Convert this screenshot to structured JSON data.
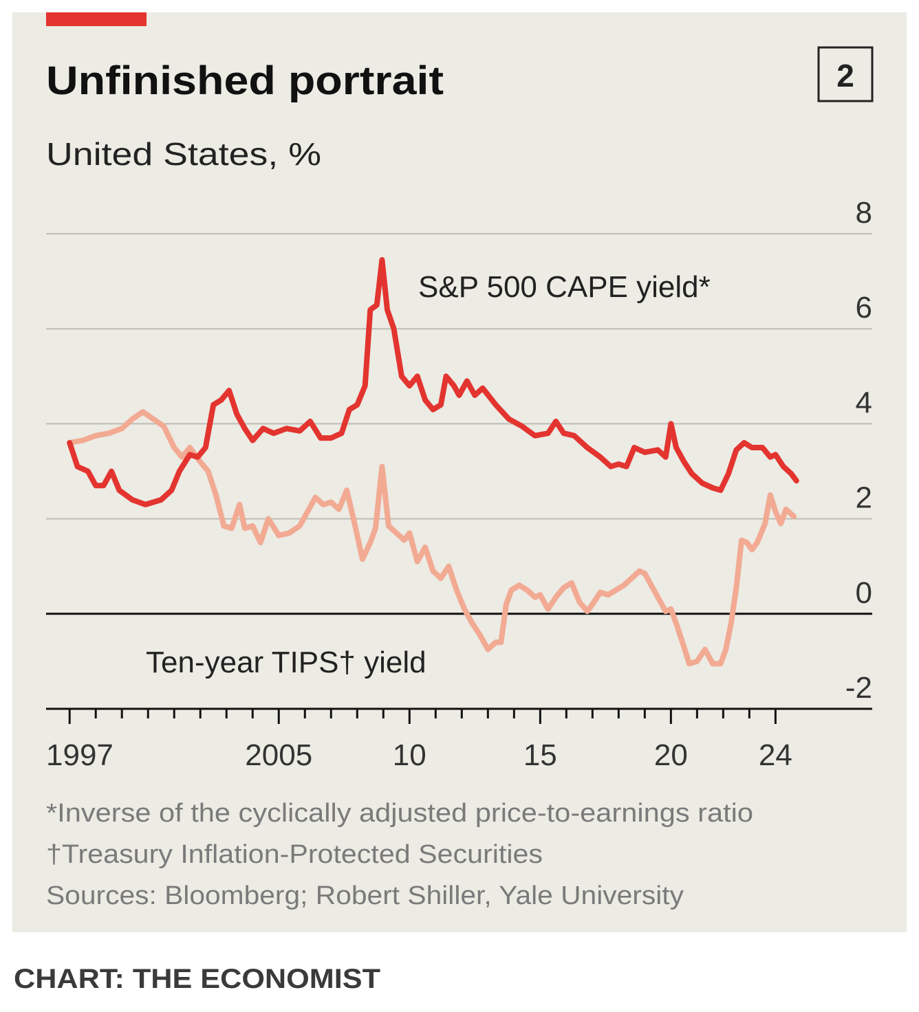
{
  "chart_data": {
    "type": "line",
    "title": "Unfinished portrait",
    "subtitle": "United States, %",
    "badge": "2",
    "footnotes": [
      "*Inverse of the cyclically adjusted price-to-earnings ratio",
      "†Treasury Inflation-Protected Securities",
      "Sources: Bloomberg; Robert Shiller, Yale University"
    ],
    "credit": "CHART: THE ECONOMIST",
    "xlim": [
      1996.1,
      2027.7
    ],
    "xticks": [
      {
        "value": 1997,
        "label": "1997"
      },
      {
        "value": 2005,
        "label": "2005"
      },
      {
        "value": 2010,
        "label": "10"
      },
      {
        "value": 2015,
        "label": "15"
      },
      {
        "value": 2020,
        "label": "20"
      },
      {
        "value": 2024,
        "label": "24"
      }
    ],
    "xminorticks": [
      1998,
      1999,
      2000,
      2001,
      2002,
      2003,
      2004,
      2006,
      2007,
      2008,
      2009,
      2011,
      2012,
      2013,
      2014,
      2016,
      2017,
      2018,
      2019,
      2021,
      2022,
      2023
    ],
    "ylim": [
      -2,
      8
    ],
    "yticks": [
      -2,
      0,
      2,
      4,
      6,
      8
    ],
    "grid": true,
    "series": [
      {
        "name": "S&P 500 CAPE yield*",
        "color": "#e3342f",
        "x": [
          1997.0,
          1997.3,
          1997.7,
          1998.0,
          1998.3,
          1998.6,
          1998.9,
          1999.4,
          1999.9,
          2000.5,
          2000.9,
          2001.2,
          2001.6,
          2001.9,
          2002.2,
          2002.5,
          2002.8,
          2003.1,
          2003.4,
          2003.7,
          2004.0,
          2004.4,
          2004.8,
          2005.3,
          2005.8,
          2006.2,
          2006.6,
          2007.0,
          2007.4,
          2007.7,
          2008.0,
          2008.3,
          2008.5,
          2008.75,
          2008.95,
          2009.15,
          2009.4,
          2009.7,
          2010.0,
          2010.3,
          2010.6,
          2010.9,
          2011.2,
          2011.4,
          2011.7,
          2011.9,
          2012.2,
          2012.5,
          2012.8,
          2013.3,
          2013.8,
          2014.3,
          2014.8,
          2015.3,
          2015.6,
          2015.9,
          2016.3,
          2016.8,
          2017.3,
          2017.7,
          2018.0,
          2018.3,
          2018.6,
          2019.0,
          2019.5,
          2019.8,
          2020.0,
          2020.2,
          2020.5,
          2020.8,
          2021.2,
          2021.6,
          2021.9,
          2022.2,
          2022.5,
          2022.8,
          2023.1,
          2023.5,
          2023.8,
          2024.0,
          2024.3,
          2024.6,
          2024.8
        ],
        "values": [
          3.6,
          3.1,
          3.0,
          2.7,
          2.7,
          3.0,
          2.6,
          2.4,
          2.3,
          2.4,
          2.6,
          3.0,
          3.35,
          3.3,
          3.5,
          4.4,
          4.5,
          4.7,
          4.2,
          3.9,
          3.65,
          3.9,
          3.8,
          3.9,
          3.85,
          4.05,
          3.7,
          3.7,
          3.8,
          4.3,
          4.4,
          4.8,
          6.4,
          6.5,
          7.45,
          6.4,
          6.0,
          5.0,
          4.8,
          5.0,
          4.5,
          4.3,
          4.4,
          5.0,
          4.8,
          4.6,
          4.9,
          4.6,
          4.75,
          4.4,
          4.1,
          3.95,
          3.75,
          3.8,
          4.05,
          3.8,
          3.75,
          3.5,
          3.3,
          3.1,
          3.15,
          3.1,
          3.5,
          3.4,
          3.45,
          3.3,
          4.0,
          3.5,
          3.2,
          2.95,
          2.75,
          2.65,
          2.6,
          2.95,
          3.45,
          3.6,
          3.5,
          3.5,
          3.3,
          3.35,
          3.1,
          2.95,
          2.8
        ]
      },
      {
        "name": "Ten-year TIPS† yield",
        "color": "#f2aa93",
        "x": [
          1997.0,
          1997.5,
          1998.0,
          1998.5,
          1999.0,
          1999.4,
          1999.8,
          2000.2,
          2000.6,
          2001.0,
          2001.3,
          2001.6,
          2002.0,
          2002.3,
          2002.6,
          2002.9,
          2003.2,
          2003.5,
          2003.7,
          2004.0,
          2004.3,
          2004.6,
          2005.0,
          2005.4,
          2005.8,
          2006.1,
          2006.4,
          2006.7,
          2007.0,
          2007.3,
          2007.6,
          2007.9,
          2008.2,
          2008.5,
          2008.7,
          2008.95,
          2009.2,
          2009.5,
          2009.8,
          2010.0,
          2010.3,
          2010.6,
          2010.9,
          2011.2,
          2011.5,
          2011.8,
          2012.1,
          2012.4,
          2012.7,
          2013.0,
          2013.3,
          2013.5,
          2013.7,
          2013.9,
          2014.2,
          2014.5,
          2014.8,
          2015.0,
          2015.3,
          2015.6,
          2015.9,
          2016.2,
          2016.5,
          2016.8,
          2017.0,
          2017.3,
          2017.6,
          2017.9,
          2018.2,
          2018.5,
          2018.8,
          2019.0,
          2019.3,
          2019.6,
          2019.8,
          2020.0,
          2020.2,
          2020.5,
          2020.7,
          2021.0,
          2021.3,
          2021.6,
          2021.9,
          2022.1,
          2022.3,
          2022.5,
          2022.7,
          2022.9,
          2023.1,
          2023.3,
          2023.6,
          2023.8,
          2024.0,
          2024.2,
          2024.4,
          2024.7
        ],
        "values": [
          3.6,
          3.65,
          3.75,
          3.8,
          3.9,
          4.1,
          4.25,
          4.1,
          3.95,
          3.5,
          3.3,
          3.5,
          3.2,
          3.0,
          2.5,
          1.85,
          1.8,
          2.3,
          1.8,
          1.85,
          1.5,
          2.0,
          1.65,
          1.7,
          1.85,
          2.15,
          2.45,
          2.3,
          2.35,
          2.2,
          2.6,
          1.9,
          1.15,
          1.5,
          1.8,
          3.1,
          1.85,
          1.7,
          1.55,
          1.7,
          1.1,
          1.4,
          0.9,
          0.75,
          1.0,
          0.5,
          0.1,
          -0.2,
          -0.45,
          -0.75,
          -0.6,
          -0.6,
          0.2,
          0.5,
          0.6,
          0.5,
          0.35,
          0.4,
          0.1,
          0.35,
          0.55,
          0.65,
          0.25,
          0.05,
          0.2,
          0.45,
          0.4,
          0.5,
          0.6,
          0.75,
          0.9,
          0.85,
          0.55,
          0.25,
          0.05,
          0.1,
          -0.2,
          -0.7,
          -1.05,
          -1.0,
          -0.75,
          -1.05,
          -1.05,
          -0.75,
          -0.2,
          0.55,
          1.55,
          1.5,
          1.35,
          1.5,
          1.9,
          2.5,
          2.15,
          1.9,
          2.2,
          2.05
        ]
      }
    ]
  }
}
